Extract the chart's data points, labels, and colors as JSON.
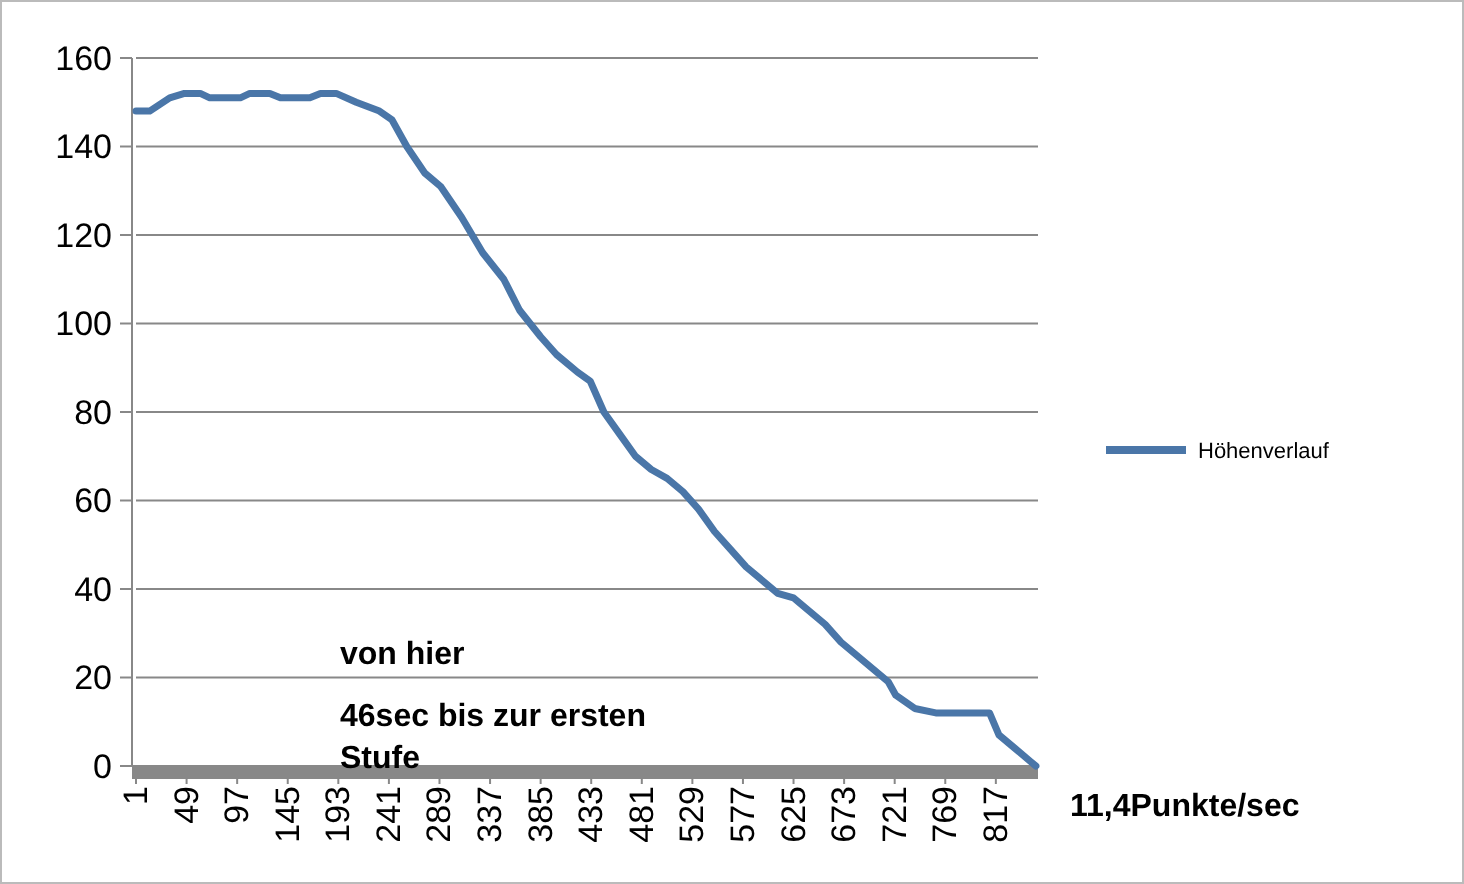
{
  "chart_data": {
    "type": "line",
    "x": [
      1,
      14,
      33,
      47,
      62,
      71,
      100,
      109,
      128,
      138,
      166,
      176,
      191,
      210,
      232,
      244,
      258,
      275,
      290,
      310,
      330,
      350,
      365,
      385,
      400,
      420,
      432,
      445,
      460,
      475,
      490,
      505,
      520,
      535,
      550,
      565,
      580,
      595,
      610,
      625,
      640,
      655,
      670,
      685,
      700,
      715,
      722,
      740,
      760,
      790,
      811,
      820,
      835,
      850,
      855
    ],
    "series": [
      {
        "name": "Höhenverlauf",
        "color": "#4a76a8",
        "values": [
          148,
          148,
          151,
          152,
          152,
          151,
          151,
          152,
          152,
          151,
          151,
          152,
          152,
          150,
          148,
          146,
          140,
          134,
          131,
          124,
          116,
          110,
          103,
          97,
          93,
          89,
          87,
          80,
          75,
          70,
          67,
          65,
          62,
          58,
          53,
          49,
          45,
          42,
          39,
          38,
          35,
          32,
          28,
          25,
          22,
          19,
          16,
          13,
          12,
          12,
          12,
          7,
          4,
          1,
          0
        ]
      }
    ],
    "xlim": [
      1,
      857
    ],
    "xticks": [
      1,
      49,
      97,
      145,
      193,
      241,
      289,
      337,
      385,
      433,
      481,
      529,
      577,
      625,
      673,
      721,
      769,
      817
    ],
    "ylim": [
      0,
      160
    ],
    "yticks": [
      0,
      20,
      40,
      60,
      80,
      100,
      120,
      140,
      160
    ],
    "grid": "y",
    "legend": "right",
    "marker": "none",
    "line_style": "solid",
    "annotations": [
      "von hier",
      "46sec bis zur ersten Stufe",
      "11,4Punkte/sec"
    ]
  }
}
